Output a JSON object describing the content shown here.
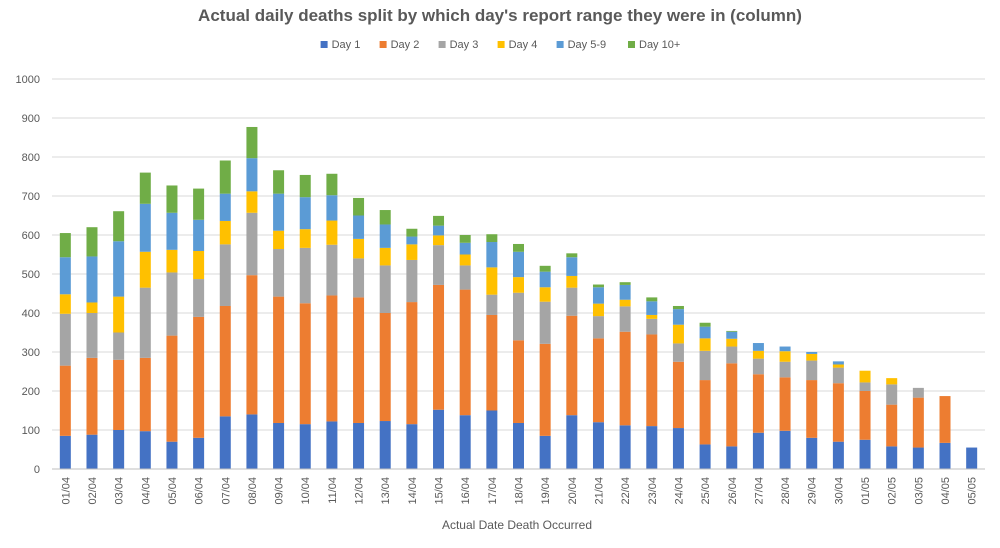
{
  "chart_data": {
    "type": "bar",
    "stacked": true,
    "title": "Actual daily deaths split by which day's report range they were in (column)",
    "xlabel": "Actual Date Death Occurred",
    "ylabel": "",
    "ylim": [
      0,
      1000
    ],
    "yticks": [
      0,
      100,
      200,
      300,
      400,
      500,
      600,
      700,
      800,
      900,
      1000
    ],
    "grid": true,
    "legend_position": "top",
    "categories": [
      "01/04",
      "02/04",
      "03/04",
      "04/04",
      "05/04",
      "06/04",
      "07/04",
      "08/04",
      "09/04",
      "10/04",
      "11/04",
      "12/04",
      "13/04",
      "14/04",
      "15/04",
      "16/04",
      "17/04",
      "18/04",
      "19/04",
      "20/04",
      "21/04",
      "22/04",
      "23/04",
      "24/04",
      "25/04",
      "26/04",
      "27/04",
      "28/04",
      "29/04",
      "30/04",
      "01/05",
      "02/05",
      "03/05",
      "04/05",
      "05/05"
    ],
    "series": [
      {
        "name": "Day 1",
        "color": "#4472C4",
        "values": [
          85,
          88,
          100,
          97,
          70,
          80,
          135,
          140,
          118,
          115,
          122,
          118,
          123,
          115,
          152,
          138,
          150,
          118,
          85,
          138,
          120,
          112,
          110,
          105,
          63,
          58,
          93,
          98,
          80,
          70,
          75,
          58,
          55,
          67,
          55
        ]
      },
      {
        "name": "Day 2",
        "color": "#ED7D31",
        "values": [
          180,
          197,
          180,
          188,
          272,
          310,
          283,
          357,
          324,
          310,
          323,
          322,
          277,
          313,
          320,
          322,
          245,
          212,
          236,
          255,
          215,
          240,
          235,
          170,
          165,
          213,
          150,
          137,
          148,
          150,
          125,
          107,
          128,
          120,
          0
        ]
      },
      {
        "name": "Day 3",
        "color": "#A5A5A5",
        "values": [
          133,
          115,
          70,
          180,
          162,
          97,
          158,
          160,
          122,
          142,
          130,
          100,
          122,
          108,
          102,
          62,
          52,
          122,
          108,
          72,
          57,
          65,
          40,
          47,
          75,
          43,
          40,
          40,
          50,
          40,
          22,
          52,
          25,
          0,
          0
        ]
      },
      {
        "name": "Day 4",
        "color": "#FFC000",
        "values": [
          50,
          27,
          92,
          92,
          58,
          72,
          60,
          55,
          47,
          48,
          62,
          50,
          45,
          40,
          25,
          28,
          70,
          40,
          37,
          30,
          32,
          17,
          10,
          48,
          32,
          20,
          20,
          27,
          17,
          8,
          30,
          16,
          0,
          0,
          0
        ]
      },
      {
        "name": "Day 5-9",
        "color": "#5B9BD5",
        "values": [
          95,
          118,
          142,
          123,
          95,
          80,
          70,
          85,
          95,
          82,
          65,
          60,
          60,
          20,
          25,
          30,
          65,
          65,
          40,
          48,
          42,
          38,
          35,
          40,
          30,
          18,
          20,
          12,
          5,
          8,
          0,
          0,
          0,
          0,
          0
        ]
      },
      {
        "name": "Day 10+",
        "color": "#70AD47",
        "values": [
          62,
          75,
          77,
          80,
          70,
          80,
          85,
          80,
          60,
          57,
          55,
          45,
          37,
          20,
          25,
          20,
          20,
          20,
          15,
          10,
          7,
          7,
          10,
          8,
          10,
          2,
          0,
          0,
          0,
          0,
          0,
          0,
          0,
          0,
          0
        ]
      }
    ]
  }
}
